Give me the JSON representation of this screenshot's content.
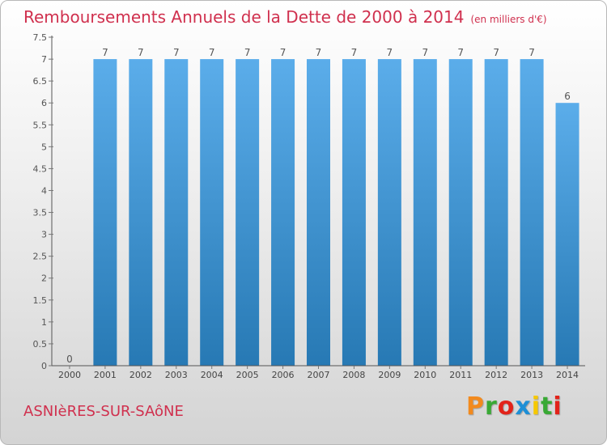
{
  "chart_data": {
    "type": "bar",
    "title": "Remboursements Annuels de la Dette de 2000 à 2014",
    "unit": "(en milliers d'€)",
    "categories": [
      "2000",
      "2001",
      "2002",
      "2003",
      "2004",
      "2005",
      "2006",
      "2007",
      "2008",
      "2009",
      "2010",
      "2011",
      "2012",
      "2013",
      "2014"
    ],
    "values": [
      0,
      7,
      7,
      7,
      7,
      7,
      7,
      7,
      7,
      7,
      7,
      7,
      7,
      7,
      6
    ],
    "data_labels": [
      "0",
      "7",
      "7",
      "7",
      "7",
      "7",
      "7",
      "7",
      "7",
      "7",
      "7",
      "7",
      "7",
      "7",
      "6"
    ],
    "yticks": [
      "0",
      "0.5",
      "1",
      "1.5",
      "2",
      "2.5",
      "3",
      "3.5",
      "4",
      "4.5",
      "5",
      "5.5",
      "6",
      "6.5",
      "7",
      "7.5"
    ],
    "ylim": [
      0,
      7.5
    ],
    "xlabel": "",
    "ylabel": "",
    "grid": false
  },
  "footer": {
    "commune": "ASNIèRES-SUR-SAôNE",
    "brand": "Proxiti",
    "brand_colors": [
      "#f28a1e",
      "#39a935",
      "#e2231a",
      "#1d8fd6",
      "#f6c800",
      "#39a935",
      "#e2231a"
    ]
  },
  "colors": {
    "bar_top": "#5badea",
    "bar_bottom": "#2779b4",
    "title": "#d0304e"
  }
}
